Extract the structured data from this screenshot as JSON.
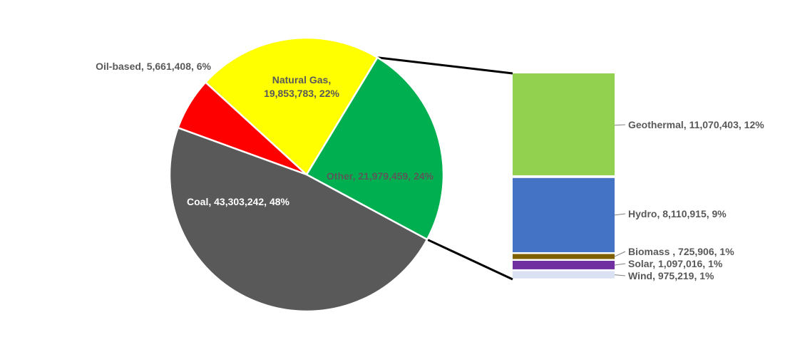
{
  "chart_data": {
    "type": "bar-of-pie",
    "pie": {
      "slices": [
        {
          "name": "Oil-based",
          "value": 5661408,
          "percent": 6,
          "label": "Oil-based, 5,661,408, 6%",
          "color": "#FF0000",
          "label_color": "#595959"
        },
        {
          "name": "Natural Gas",
          "value": 19853783,
          "percent": 22,
          "label": [
            "Natural Gas,",
            "19,853,783, 22%"
          ],
          "color": "#FFFF00",
          "label_color": "#595959"
        },
        {
          "name": "Other",
          "value": 21979459,
          "percent": 24,
          "label": "Other, 21,979,459, 24%",
          "color": "#00B050",
          "label_color": "#595959"
        },
        {
          "name": "Coal",
          "value": 43303242,
          "percent": 48,
          "label": "Coal, 43,303,242, 48%",
          "color": "#595959",
          "label_color": "#FFFFFF"
        }
      ]
    },
    "bar": {
      "breakdown_of": "Other",
      "segments": [
        {
          "name": "Geothermal",
          "value": 11070403,
          "percent": 12,
          "label": "Geothermal, 11,070,403, 12%",
          "color": "#92D050"
        },
        {
          "name": "Hydro",
          "value": 8110915,
          "percent": 9,
          "label": "Hydro, 8,110,915, 9%",
          "color": "#4472C4"
        },
        {
          "name": "Biomass",
          "value": 725906,
          "percent": 1,
          "label": "Biomass , 725,906, 1%",
          "color": "#7F6000"
        },
        {
          "name": "Solar",
          "value": 1097016,
          "percent": 1,
          "label": "Solar, 1,097,016, 1%",
          "color": "#7030A0"
        },
        {
          "name": "Wind",
          "value": 975219,
          "percent": 1,
          "label": "Wind, 975,219, 1%",
          "color": "#D9E1F2"
        }
      ]
    },
    "label_color": "#595959",
    "connector_color": "#000000"
  }
}
